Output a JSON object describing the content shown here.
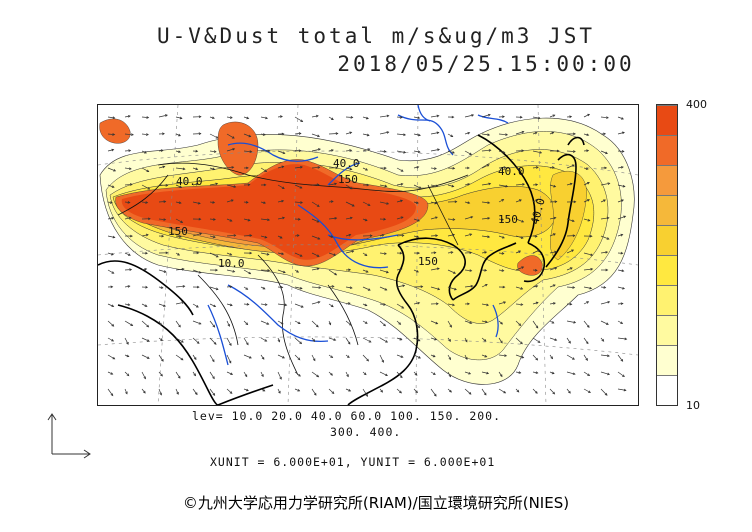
{
  "header": {
    "title_line1": "U-V&Dust total m/s&ug/m3 JST",
    "title_line2": "2018/05/25.15:00:00"
  },
  "legend": {
    "max_label": "400",
    "min_label": "10",
    "levels_line1": "lev= 10.0 20.0 40.0 60.0 100. 150. 200.",
    "levels_line2": "300. 400.",
    "levels": [
      10,
      20,
      40,
      60,
      100,
      150,
      200,
      300,
      400
    ],
    "colors": [
      "#ffffff",
      "#ffffd0",
      "#fffaa0",
      "#fff270",
      "#ffe840",
      "#f8d030",
      "#f5b83a",
      "#f59a3c",
      "#f06a28",
      "#e84a14"
    ]
  },
  "units_text": "XUNIT = 6.000E+01, YUNIT = 6.000E+01",
  "contour_labels": [
    "40.0",
    "150",
    "40.0",
    "150",
    "10.0",
    "150",
    "40.0",
    "40.0",
    "150"
  ],
  "credit": "©九州大学応用力学研究所(RIAM)/国立環境研究所(NIES)",
  "colors": {
    "coast": "#000000",
    "river": "#1a4fd6",
    "vector": "#333333",
    "grid": "#777777"
  }
}
